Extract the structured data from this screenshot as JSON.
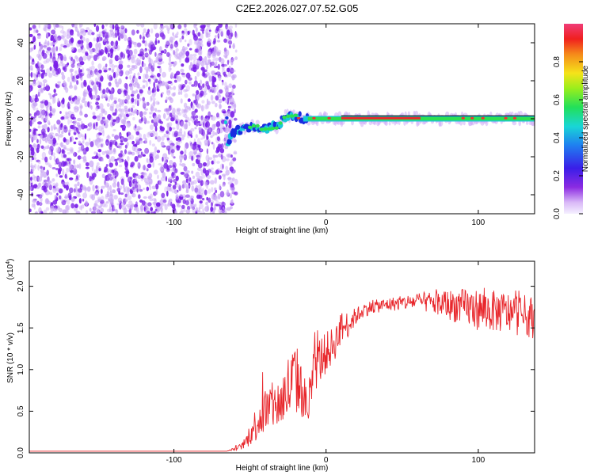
{
  "figure": {
    "title": "C2E2.2026.027.07.52.G05",
    "colors": {
      "snr_line": "#e8262b",
      "scatter_purple": "#7a1fe8",
      "scatter_light": "#c9a6f5",
      "axes": "#000000"
    }
  },
  "chart_data": [
    {
      "type": "heatmap",
      "title": "C2E2.2026.027.07.52.G05",
      "xlabel": "Height of straight line (km)",
      "ylabel": "Frequency (Hz)",
      "xlim": [
        -195,
        137
      ],
      "ylim": [
        -50,
        50
      ],
      "xticks": [
        -100,
        0,
        100
      ],
      "xtick_labels": [
        "-100",
        "0",
        "100"
      ],
      "yticks": [
        -40,
        -20,
        0,
        20,
        40
      ],
      "ytick_labels": [
        "-40",
        "-20",
        "0",
        "20",
        "40"
      ],
      "noise_region_x": [
        -195,
        -63
      ],
      "signal_band": [
        {
          "x": -65,
          "y": -12
        },
        {
          "x": -58,
          "y": -6
        },
        {
          "x": -50,
          "y": -4
        },
        {
          "x": -40,
          "y": -5
        },
        {
          "x": -32,
          "y": -4
        },
        {
          "x": -28,
          "y": 1
        },
        {
          "x": -22,
          "y": 2
        },
        {
          "x": -15,
          "y": 0
        },
        {
          "x": 0,
          "y": 0
        },
        {
          "x": 137,
          "y": 0
        }
      ],
      "colorbar": {
        "label": "Normalized spectral amplitude",
        "range": [
          0,
          1
        ],
        "ticks": [
          "0.0",
          "0.2",
          "0.4",
          "0.6",
          "0.8"
        ]
      }
    },
    {
      "type": "line",
      "xlabel": "Height of straight line (km)",
      "ylabel": "SNR (10 * v/v)",
      "y_multiplier": "(x10",
      "y_multiplier_exp": "4",
      "y_multiplier_close": ")",
      "xlim": [
        -195,
        137
      ],
      "ylim": [
        0,
        2.3
      ],
      "xticks": [
        -100,
        0,
        100
      ],
      "xtick_labels": [
        "-100",
        "0",
        "100"
      ],
      "yticks": [
        0,
        0.5,
        1.0,
        1.5,
        2.0
      ],
      "ytick_labels": [
        "0.0",
        "0.5",
        "1.0",
        "1.5",
        "2.0"
      ],
      "series": [
        {
          "x": [
            -195,
            -150,
            -100,
            -65,
            -55,
            -50,
            -45,
            -40,
            -35,
            -30,
            -25,
            -20,
            -15,
            -12,
            -8,
            -5,
            0,
            5,
            10,
            15,
            20,
            25,
            30,
            40,
            50,
            60,
            70,
            80,
            90,
            100,
            110,
            120,
            130,
            137
          ],
          "y": [
            0.02,
            0.02,
            0.02,
            0.02,
            0.08,
            0.2,
            0.4,
            0.5,
            0.55,
            0.6,
            0.75,
            0.9,
            0.7,
            0.5,
            1.0,
            1.1,
            1.2,
            1.3,
            1.5,
            1.55,
            1.65,
            1.72,
            1.75,
            1.78,
            1.8,
            1.82,
            1.8,
            1.78,
            1.75,
            1.72,
            1.7,
            1.68,
            1.65,
            1.62
          ],
          "noise": [
            0,
            0,
            0,
            0,
            0.04,
            0.12,
            0.25,
            0.3,
            0.3,
            0.3,
            0.45,
            0.45,
            0.3,
            0.25,
            0.3,
            0.3,
            0.25,
            0.22,
            0.2,
            0.15,
            0.1,
            0.09,
            0.08,
            0.08,
            0.09,
            0.1,
            0.14,
            0.18,
            0.22,
            0.25,
            0.25,
            0.25,
            0.25,
            0.25
          ]
        }
      ]
    }
  ]
}
